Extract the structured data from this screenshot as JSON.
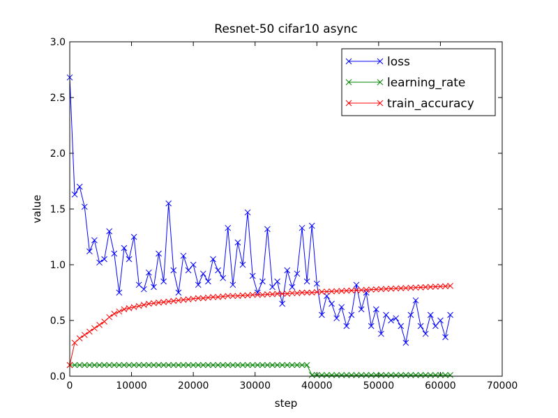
{
  "chart_data": {
    "type": "line",
    "title": "Resnet-50 cifar10 async",
    "x_label": "step",
    "y_label": "value",
    "x": [
      0,
      800,
      1600,
      2400,
      3200,
      4000,
      4800,
      5600,
      6400,
      7200,
      8000,
      8800,
      9600,
      10400,
      11200,
      12000,
      12800,
      13600,
      14400,
      15200,
      16000,
      16800,
      17600,
      18400,
      19200,
      20000,
      20800,
      21600,
      22400,
      23200,
      24000,
      24800,
      25600,
      26400,
      27200,
      28000,
      28800,
      29600,
      30400,
      31200,
      32000,
      32800,
      33600,
      34400,
      35200,
      36000,
      36800,
      37600,
      38400,
      39200,
      40000,
      40800,
      41600,
      42400,
      43200,
      44000,
      44800,
      45600,
      46400,
      47200,
      48000,
      48800,
      49600,
      50400,
      51200,
      52000,
      52800,
      53600,
      54400,
      55200,
      56000,
      56800,
      57600,
      58400,
      59200,
      60000,
      60800,
      61600
    ],
    "series": [
      {
        "name": "loss",
        "color": "#0000ff",
        "values": [
          2.68,
          1.63,
          1.7,
          1.52,
          1.12,
          1.22,
          1.02,
          1.05,
          1.3,
          1.1,
          0.75,
          1.15,
          1.05,
          1.25,
          0.82,
          0.78,
          0.93,
          0.8,
          1.1,
          0.85,
          1.55,
          0.95,
          0.75,
          1.08,
          0.95,
          1.0,
          0.82,
          0.92,
          0.85,
          1.05,
          0.95,
          0.88,
          1.33,
          0.82,
          1.2,
          1.0,
          1.47,
          0.9,
          0.75,
          0.85,
          1.32,
          0.8,
          0.85,
          0.65,
          0.95,
          0.8,
          0.92,
          1.33,
          0.85,
          1.35,
          0.83,
          0.55,
          0.72,
          0.65,
          0.52,
          0.62,
          0.45,
          0.55,
          0.82,
          0.6,
          0.75,
          0.45,
          0.6,
          0.38,
          0.55,
          0.5,
          0.52,
          0.45,
          0.3,
          0.55,
          0.68,
          0.45,
          0.38,
          0.55,
          0.45,
          0.5,
          0.35,
          0.55
        ]
      },
      {
        "name": "learning_rate",
        "color": "#008000",
        "values": [
          0.1,
          0.1,
          0.1,
          0.1,
          0.1,
          0.1,
          0.1,
          0.1,
          0.1,
          0.1,
          0.1,
          0.1,
          0.1,
          0.1,
          0.1,
          0.1,
          0.1,
          0.1,
          0.1,
          0.1,
          0.1,
          0.1,
          0.1,
          0.1,
          0.1,
          0.1,
          0.1,
          0.1,
          0.1,
          0.1,
          0.1,
          0.1,
          0.1,
          0.1,
          0.1,
          0.1,
          0.1,
          0.1,
          0.1,
          0.1,
          0.1,
          0.1,
          0.1,
          0.1,
          0.1,
          0.1,
          0.1,
          0.1,
          0.1,
          0.01,
          0.01,
          0.01,
          0.01,
          0.01,
          0.01,
          0.01,
          0.01,
          0.01,
          0.01,
          0.01,
          0.01,
          0.01,
          0.01,
          0.01,
          0.01,
          0.01,
          0.01,
          0.01,
          0.01,
          0.01,
          0.01,
          0.01,
          0.01,
          0.01,
          0.01,
          0.01,
          0.01,
          0.01
        ]
      },
      {
        "name": "train_accuracy",
        "color": "#ff0000",
        "values": [
          0.1,
          0.3,
          0.34,
          0.37,
          0.4,
          0.43,
          0.46,
          0.49,
          0.53,
          0.56,
          0.58,
          0.6,
          0.61,
          0.62,
          0.63,
          0.64,
          0.65,
          0.655,
          0.66,
          0.665,
          0.67,
          0.675,
          0.68,
          0.685,
          0.69,
          0.695,
          0.7,
          0.7,
          0.705,
          0.71,
          0.71,
          0.715,
          0.72,
          0.72,
          0.72,
          0.725,
          0.725,
          0.73,
          0.73,
          0.73,
          0.735,
          0.735,
          0.74,
          0.74,
          0.74,
          0.745,
          0.745,
          0.75,
          0.75,
          0.75,
          0.755,
          0.757,
          0.759,
          0.761,
          0.763,
          0.765,
          0.767,
          0.769,
          0.771,
          0.773,
          0.775,
          0.777,
          0.779,
          0.781,
          0.783,
          0.785,
          0.787,
          0.789,
          0.791,
          0.793,
          0.795,
          0.797,
          0.799,
          0.801,
          0.803,
          0.805,
          0.807,
          0.81
        ]
      }
    ],
    "xlim": [
      0,
      70000
    ],
    "xticks": [
      0,
      10000,
      20000,
      30000,
      40000,
      50000,
      60000,
      70000
    ],
    "ylim": [
      0,
      3.0
    ],
    "yticks": [
      {
        "value": 0,
        "label": "0.0"
      },
      0.5,
      {
        "value": 1,
        "label": "1.0"
      },
      1.5,
      {
        "value": 2,
        "label": "2.0"
      },
      2.5,
      {
        "value": 3,
        "label": "3.0"
      }
    ],
    "legend": "upper right",
    "grid": false
  }
}
